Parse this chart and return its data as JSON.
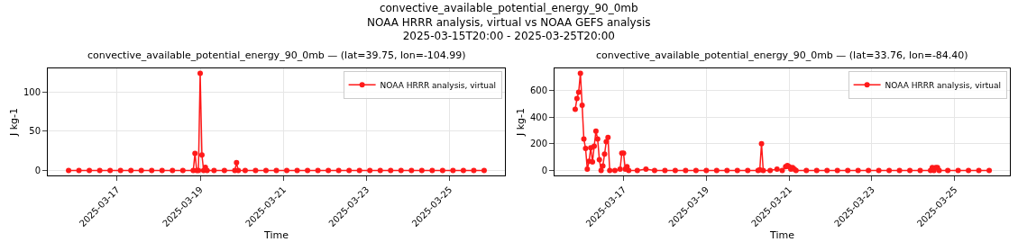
{
  "chart_data": [
    {
      "type": "other",
      "title": "convective_available_potential_energy_90_0mb",
      "subtitle": "NOAA HRRR analysis, virtual vs NOAA GEFS analysis\n2025-03-15T20:00 - 2025-03-25T20:00"
    },
    {
      "type": "line",
      "title": "convective_available_potential_energy_90_0mb — (lat=39.75, lon=-104.99)",
      "xlabel": "Time",
      "ylabel": "J kg-1",
      "xlim": [
        "2025-03-15T08:00",
        "2025-03-26T08:00"
      ],
      "xticks": [
        "2025-03-17",
        "2025-03-19",
        "2025-03-21",
        "2025-03-23",
        "2025-03-25"
      ],
      "ylim": [
        -6.2,
        130.2
      ],
      "yticks": [
        0,
        50,
        100
      ],
      "grid": true,
      "legend": "top right",
      "marker": "circle",
      "line_style": "solid",
      "series": [
        {
          "name": "NOAA HRRR analysis, virtual",
          "color": "#ff1a1a",
          "x": [
            "2025-03-15T20:00",
            "2025-03-16T02:00",
            "2025-03-16T08:00",
            "2025-03-16T14:00",
            "2025-03-16T20:00",
            "2025-03-17T02:00",
            "2025-03-17T08:00",
            "2025-03-17T14:00",
            "2025-03-17T20:00",
            "2025-03-18T02:00",
            "2025-03-18T08:00",
            "2025-03-18T14:00",
            "2025-03-18T20:00",
            "2025-03-18T21:00",
            "2025-03-18T22:00",
            "2025-03-18T23:00",
            "2025-03-19T00:00",
            "2025-03-19T01:00",
            "2025-03-19T02:00",
            "2025-03-19T03:00",
            "2025-03-19T04:00",
            "2025-03-19T08:00",
            "2025-03-19T14:00",
            "2025-03-19T20:00",
            "2025-03-19T21:00",
            "2025-03-19T22:00",
            "2025-03-20T02:00",
            "2025-03-20T08:00",
            "2025-03-20T14:00",
            "2025-03-20T20:00",
            "2025-03-21T02:00",
            "2025-03-21T08:00",
            "2025-03-21T14:00",
            "2025-03-21T20:00",
            "2025-03-22T02:00",
            "2025-03-22T08:00",
            "2025-03-22T14:00",
            "2025-03-22T20:00",
            "2025-03-23T02:00",
            "2025-03-23T08:00",
            "2025-03-23T14:00",
            "2025-03-23T20:00",
            "2025-03-24T02:00",
            "2025-03-24T08:00",
            "2025-03-24T14:00",
            "2025-03-24T20:00",
            "2025-03-25T02:00",
            "2025-03-25T08:00",
            "2025-03-25T14:00",
            "2025-03-25T20:00"
          ],
          "values": [
            0,
            0,
            0,
            0,
            0,
            0,
            0,
            0,
            0,
            0,
            0,
            0,
            0,
            22,
            0,
            0,
            124,
            20,
            0,
            4,
            0,
            0,
            0,
            0,
            10,
            0,
            0,
            0,
            0,
            0,
            0,
            0,
            0,
            0,
            0,
            0,
            0,
            0,
            0,
            0,
            0,
            0,
            0,
            0,
            0,
            0,
            0,
            0,
            0,
            0
          ]
        }
      ]
    },
    {
      "type": "line",
      "title": "convective_available_potential_energy_90_0mb — (lat=33.76, lon=-84.40)",
      "xlabel": "Time",
      "ylabel": "J kg-1",
      "xlim": [
        "2025-03-15T08:00",
        "2025-03-26T08:00"
      ],
      "xticks": [
        "2025-03-17",
        "2025-03-19",
        "2025-03-21",
        "2025-03-23",
        "2025-03-25"
      ],
      "ylim": [
        -36.5,
        766.5
      ],
      "yticks": [
        0,
        200,
        400,
        600
      ],
      "grid": true,
      "legend": "top right",
      "marker": "circle",
      "line_style": "solid",
      "series": [
        {
          "name": "NOAA HRRR analysis, virtual",
          "color": "#ff1a1a",
          "x": [
            "2025-03-15T20:00",
            "2025-03-15T21:00",
            "2025-03-15T22:00",
            "2025-03-15T23:00",
            "2025-03-16T00:00",
            "2025-03-16T01:00",
            "2025-03-16T02:00",
            "2025-03-16T03:00",
            "2025-03-16T04:00",
            "2025-03-16T05:00",
            "2025-03-16T06:00",
            "2025-03-16T07:00",
            "2025-03-16T08:00",
            "2025-03-16T09:00",
            "2025-03-16T10:00",
            "2025-03-16T11:00",
            "2025-03-16T12:00",
            "2025-03-16T13:00",
            "2025-03-16T14:00",
            "2025-03-16T15:00",
            "2025-03-16T16:00",
            "2025-03-16T19:00",
            "2025-03-16T22:00",
            "2025-03-16T23:00",
            "2025-03-17T00:00",
            "2025-03-17T01:00",
            "2025-03-17T02:00",
            "2025-03-17T03:00",
            "2025-03-17T08:00",
            "2025-03-17T13:00",
            "2025-03-17T18:00",
            "2025-03-18T00:00",
            "2025-03-18T06:00",
            "2025-03-18T12:00",
            "2025-03-18T18:00",
            "2025-03-19T00:00",
            "2025-03-19T06:00",
            "2025-03-19T12:00",
            "2025-03-19T18:00",
            "2025-03-20T00:00",
            "2025-03-20T06:00",
            "2025-03-20T07:00",
            "2025-03-20T08:00",
            "2025-03-20T09:00",
            "2025-03-20T13:00",
            "2025-03-20T17:00",
            "2025-03-20T20:00",
            "2025-03-20T22:00",
            "2025-03-20T23:00",
            "2025-03-21T00:00",
            "2025-03-21T01:00",
            "2025-03-21T02:00",
            "2025-03-21T03:00",
            "2025-03-21T04:00",
            "2025-03-21T10:00",
            "2025-03-21T16:00",
            "2025-03-21T22:00",
            "2025-03-22T04:00",
            "2025-03-22T10:00",
            "2025-03-22T16:00",
            "2025-03-22T22:00",
            "2025-03-23T04:00",
            "2025-03-23T10:00",
            "2025-03-23T16:00",
            "2025-03-23T22:00",
            "2025-03-24T04:00",
            "2025-03-24T10:00",
            "2025-03-24T11:00",
            "2025-03-24T12:00",
            "2025-03-24T13:00",
            "2025-03-24T14:00",
            "2025-03-24T15:00",
            "2025-03-24T20:00",
            "2025-03-25T02:00",
            "2025-03-25T08:00",
            "2025-03-25T14:00",
            "2025-03-25T20:00"
          ],
          "values": [
            460,
            540,
            588,
            730,
            489,
            236,
            166,
            10,
            70,
            171,
            65,
            183,
            296,
            236,
            82,
            0,
            34,
            123,
            217,
            248,
            0,
            0,
            10,
            130,
            130,
            10,
            29,
            0,
            0,
            10,
            0,
            0,
            0,
            0,
            0,
            0,
            0,
            0,
            0,
            0,
            0,
            5,
            202,
            0,
            0,
            10,
            0,
            29,
            38,
            29,
            10,
            22,
            10,
            0,
            0,
            0,
            0,
            0,
            0,
            0,
            0,
            0,
            0,
            0,
            0,
            0,
            0,
            22,
            0,
            22,
            22,
            0,
            0,
            0,
            0,
            0,
            0
          ]
        }
      ]
    }
  ]
}
